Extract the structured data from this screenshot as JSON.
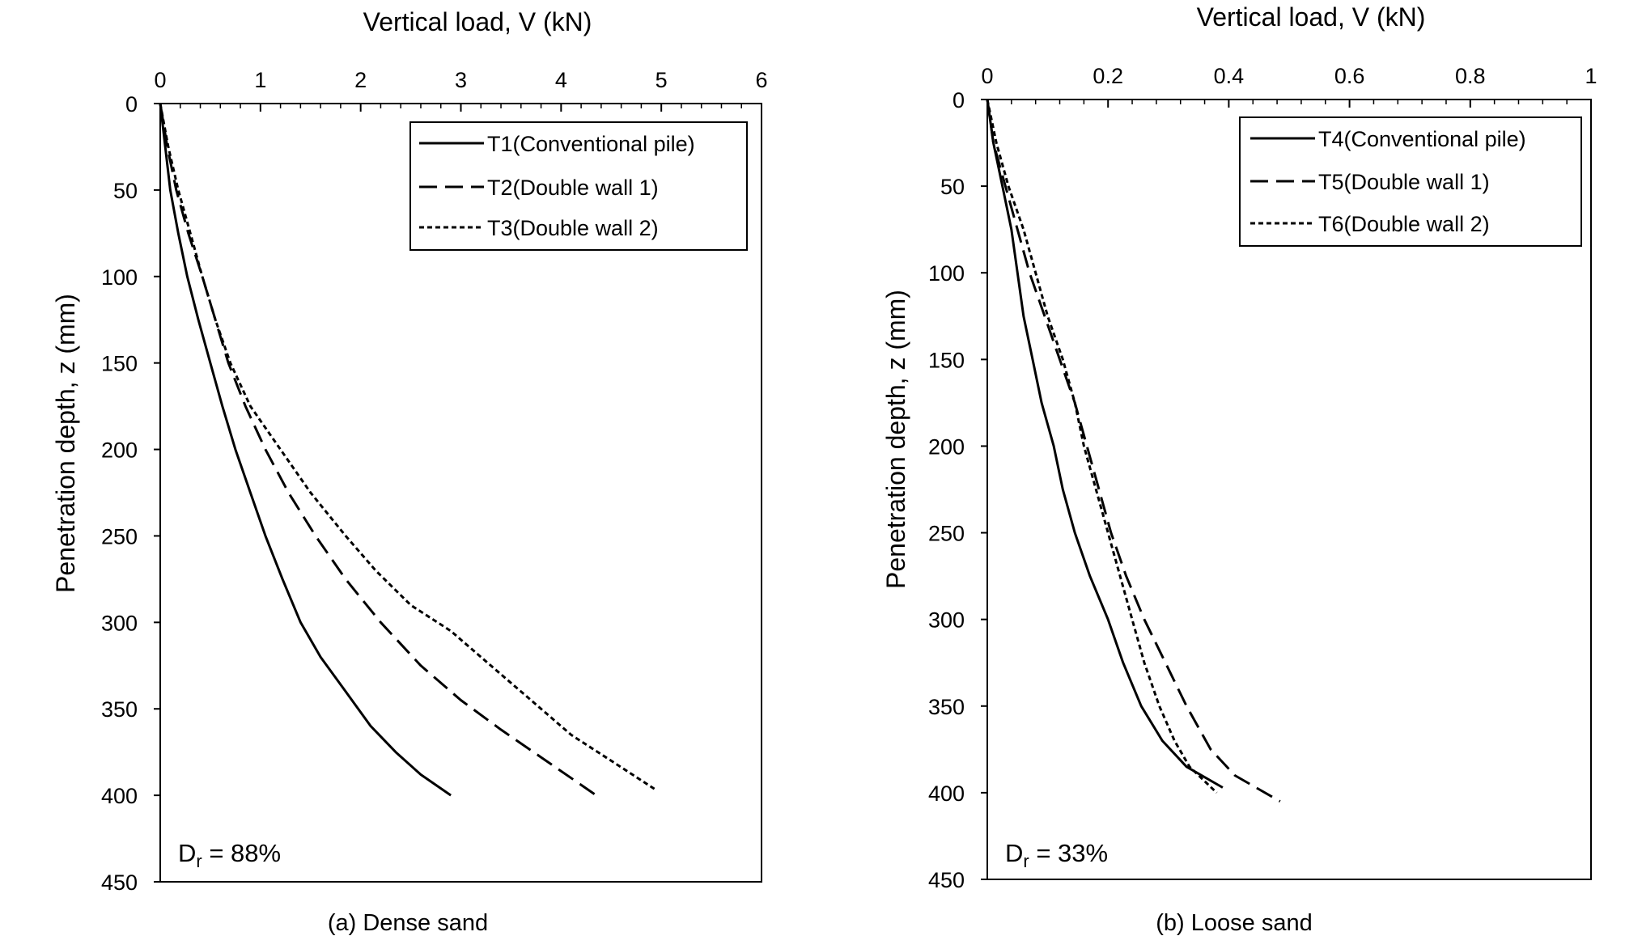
{
  "chart_data": [
    {
      "type": "line",
      "caption": "(a) Dense sand",
      "xlabel": "Vertical load, V (kN)",
      "ylabel": "Penetration depth, z (mm)",
      "xlim": [
        0,
        6
      ],
      "ylim": [
        0,
        450
      ],
      "x_axis_position": "top",
      "y_inverted": true,
      "xticks": [
        0,
        1,
        2,
        3,
        4,
        5,
        6
      ],
      "yticks": [
        0,
        50,
        100,
        150,
        200,
        250,
        300,
        350,
        400,
        450
      ],
      "xtick_labels": [
        "0",
        "1",
        "2",
        "3",
        "4",
        "5",
        "6"
      ],
      "ytick_labels": [
        "0",
        "50",
        "100",
        "150",
        "200",
        "250",
        "300",
        "350",
        "400",
        "450"
      ],
      "grid": false,
      "legend_position": "top-right",
      "annotation": {
        "main": "D",
        "sub": "r",
        "rest": " = 88%"
      },
      "series": [
        {
          "name": "T1(Conventional pile)",
          "style": "solid",
          "points": [
            [
              0,
              0
            ],
            [
              0.05,
              25
            ],
            [
              0.1,
              50
            ],
            [
              0.18,
              75
            ],
            [
              0.27,
              100
            ],
            [
              0.38,
              125
            ],
            [
              0.5,
              150
            ],
            [
              0.62,
              175
            ],
            [
              0.75,
              200
            ],
            [
              0.9,
              225
            ],
            [
              1.05,
              250
            ],
            [
              1.22,
              275
            ],
            [
              1.4,
              300
            ],
            [
              1.6,
              320
            ],
            [
              1.85,
              340
            ],
            [
              2.1,
              360
            ],
            [
              2.35,
              375
            ],
            [
              2.6,
              388
            ],
            [
              2.9,
              400
            ]
          ]
        },
        {
          "name": "T2(Double wall 1)",
          "style": "dashed",
          "points": [
            [
              0,
              0
            ],
            [
              0.07,
              25
            ],
            [
              0.16,
              50
            ],
            [
              0.28,
              75
            ],
            [
              0.42,
              100
            ],
            [
              0.55,
              125
            ],
            [
              0.68,
              150
            ],
            [
              0.85,
              175
            ],
            [
              1.05,
              200
            ],
            [
              1.28,
              225
            ],
            [
              1.55,
              250
            ],
            [
              1.85,
              275
            ],
            [
              2.2,
              300
            ],
            [
              2.6,
              325
            ],
            [
              3.0,
              345
            ],
            [
              3.4,
              362
            ],
            [
              3.8,
              378
            ],
            [
              4.1,
              390
            ],
            [
              4.35,
              400
            ]
          ]
        },
        {
          "name": "T3(Double wall 2)",
          "style": "dotted",
          "points": [
            [
              0,
              0
            ],
            [
              0.08,
              25
            ],
            [
              0.18,
              50
            ],
            [
              0.3,
              75
            ],
            [
              0.42,
              100
            ],
            [
              0.55,
              125
            ],
            [
              0.7,
              150
            ],
            [
              0.9,
              175
            ],
            [
              1.2,
              200
            ],
            [
              1.5,
              225
            ],
            [
              1.85,
              250
            ],
            [
              2.15,
              270
            ],
            [
              2.5,
              290
            ],
            [
              2.9,
              305
            ],
            [
              3.3,
              325
            ],
            [
              3.7,
              345
            ],
            [
              4.1,
              365
            ],
            [
              4.5,
              380
            ],
            [
              4.95,
              397
            ]
          ]
        }
      ]
    },
    {
      "type": "line",
      "caption": "(b) Loose sand",
      "xlabel": "Vertical load, V (kN)",
      "ylabel": "Penetration depth, z (mm)",
      "xlim": [
        0,
        1
      ],
      "ylim": [
        0,
        450
      ],
      "x_axis_position": "top",
      "y_inverted": true,
      "xticks": [
        0,
        0.2,
        0.4,
        0.6,
        0.8,
        1
      ],
      "yticks": [
        0,
        50,
        100,
        150,
        200,
        250,
        300,
        350,
        400,
        450
      ],
      "xtick_labels": [
        "0",
        "0.2",
        "0.4",
        "0.6",
        "0.8",
        "1"
      ],
      "ytick_labels": [
        "0",
        "50",
        "100",
        "150",
        "200",
        "250",
        "300",
        "350",
        "400",
        "450"
      ],
      "grid": false,
      "legend_position": "top-right",
      "annotation": {
        "main": "D",
        "sub": "r",
        "rest": " = 33%"
      },
      "series": [
        {
          "name": "T4(Conventional pile)",
          "style": "solid",
          "points": [
            [
              0,
              0
            ],
            [
              0.01,
              25
            ],
            [
              0.025,
              50
            ],
            [
              0.04,
              75
            ],
            [
              0.05,
              100
            ],
            [
              0.06,
              125
            ],
            [
              0.075,
              150
            ],
            [
              0.09,
              175
            ],
            [
              0.11,
              200
            ],
            [
              0.125,
              225
            ],
            [
              0.145,
              250
            ],
            [
              0.17,
              275
            ],
            [
              0.2,
              300
            ],
            [
              0.225,
              325
            ],
            [
              0.255,
              350
            ],
            [
              0.29,
              370
            ],
            [
              0.33,
              385
            ],
            [
              0.39,
              397
            ]
          ]
        },
        {
          "name": "T5(Double wall 1)",
          "style": "dashed",
          "points": [
            [
              0,
              0
            ],
            [
              0.01,
              25
            ],
            [
              0.03,
              50
            ],
            [
              0.05,
              75
            ],
            [
              0.07,
              100
            ],
            [
              0.095,
              125
            ],
            [
              0.12,
              150
            ],
            [
              0.145,
              175
            ],
            [
              0.165,
              200
            ],
            [
              0.185,
              225
            ],
            [
              0.205,
              250
            ],
            [
              0.23,
              275
            ],
            [
              0.26,
              300
            ],
            [
              0.295,
              325
            ],
            [
              0.33,
              350
            ],
            [
              0.37,
              375
            ],
            [
              0.41,
              390
            ],
            [
              0.485,
              405
            ]
          ]
        },
        {
          "name": "T6(Double wall 2)",
          "style": "dotted",
          "points": [
            [
              0,
              0
            ],
            [
              0.015,
              25
            ],
            [
              0.035,
              50
            ],
            [
              0.06,
              75
            ],
            [
              0.08,
              100
            ],
            [
              0.1,
              125
            ],
            [
              0.125,
              150
            ],
            [
              0.145,
              175
            ],
            [
              0.16,
              200
            ],
            [
              0.18,
              225
            ],
            [
              0.2,
              250
            ],
            [
              0.22,
              275
            ],
            [
              0.24,
              300
            ],
            [
              0.26,
              325
            ],
            [
              0.285,
              350
            ],
            [
              0.31,
              370
            ],
            [
              0.335,
              385
            ],
            [
              0.38,
              400
            ]
          ]
        }
      ]
    }
  ]
}
